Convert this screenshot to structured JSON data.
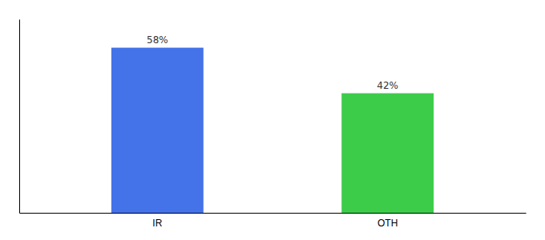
{
  "chart_data": {
    "type": "bar",
    "categories": [
      "IR",
      "OTH"
    ],
    "values": [
      58,
      42
    ],
    "value_labels": [
      "58%",
      "42%"
    ],
    "colors": [
      "#4472e8",
      "#3dcc4a"
    ],
    "ylim": [
      0,
      68
    ],
    "data_labels": true,
    "tick_labels": "x",
    "grid": false
  }
}
